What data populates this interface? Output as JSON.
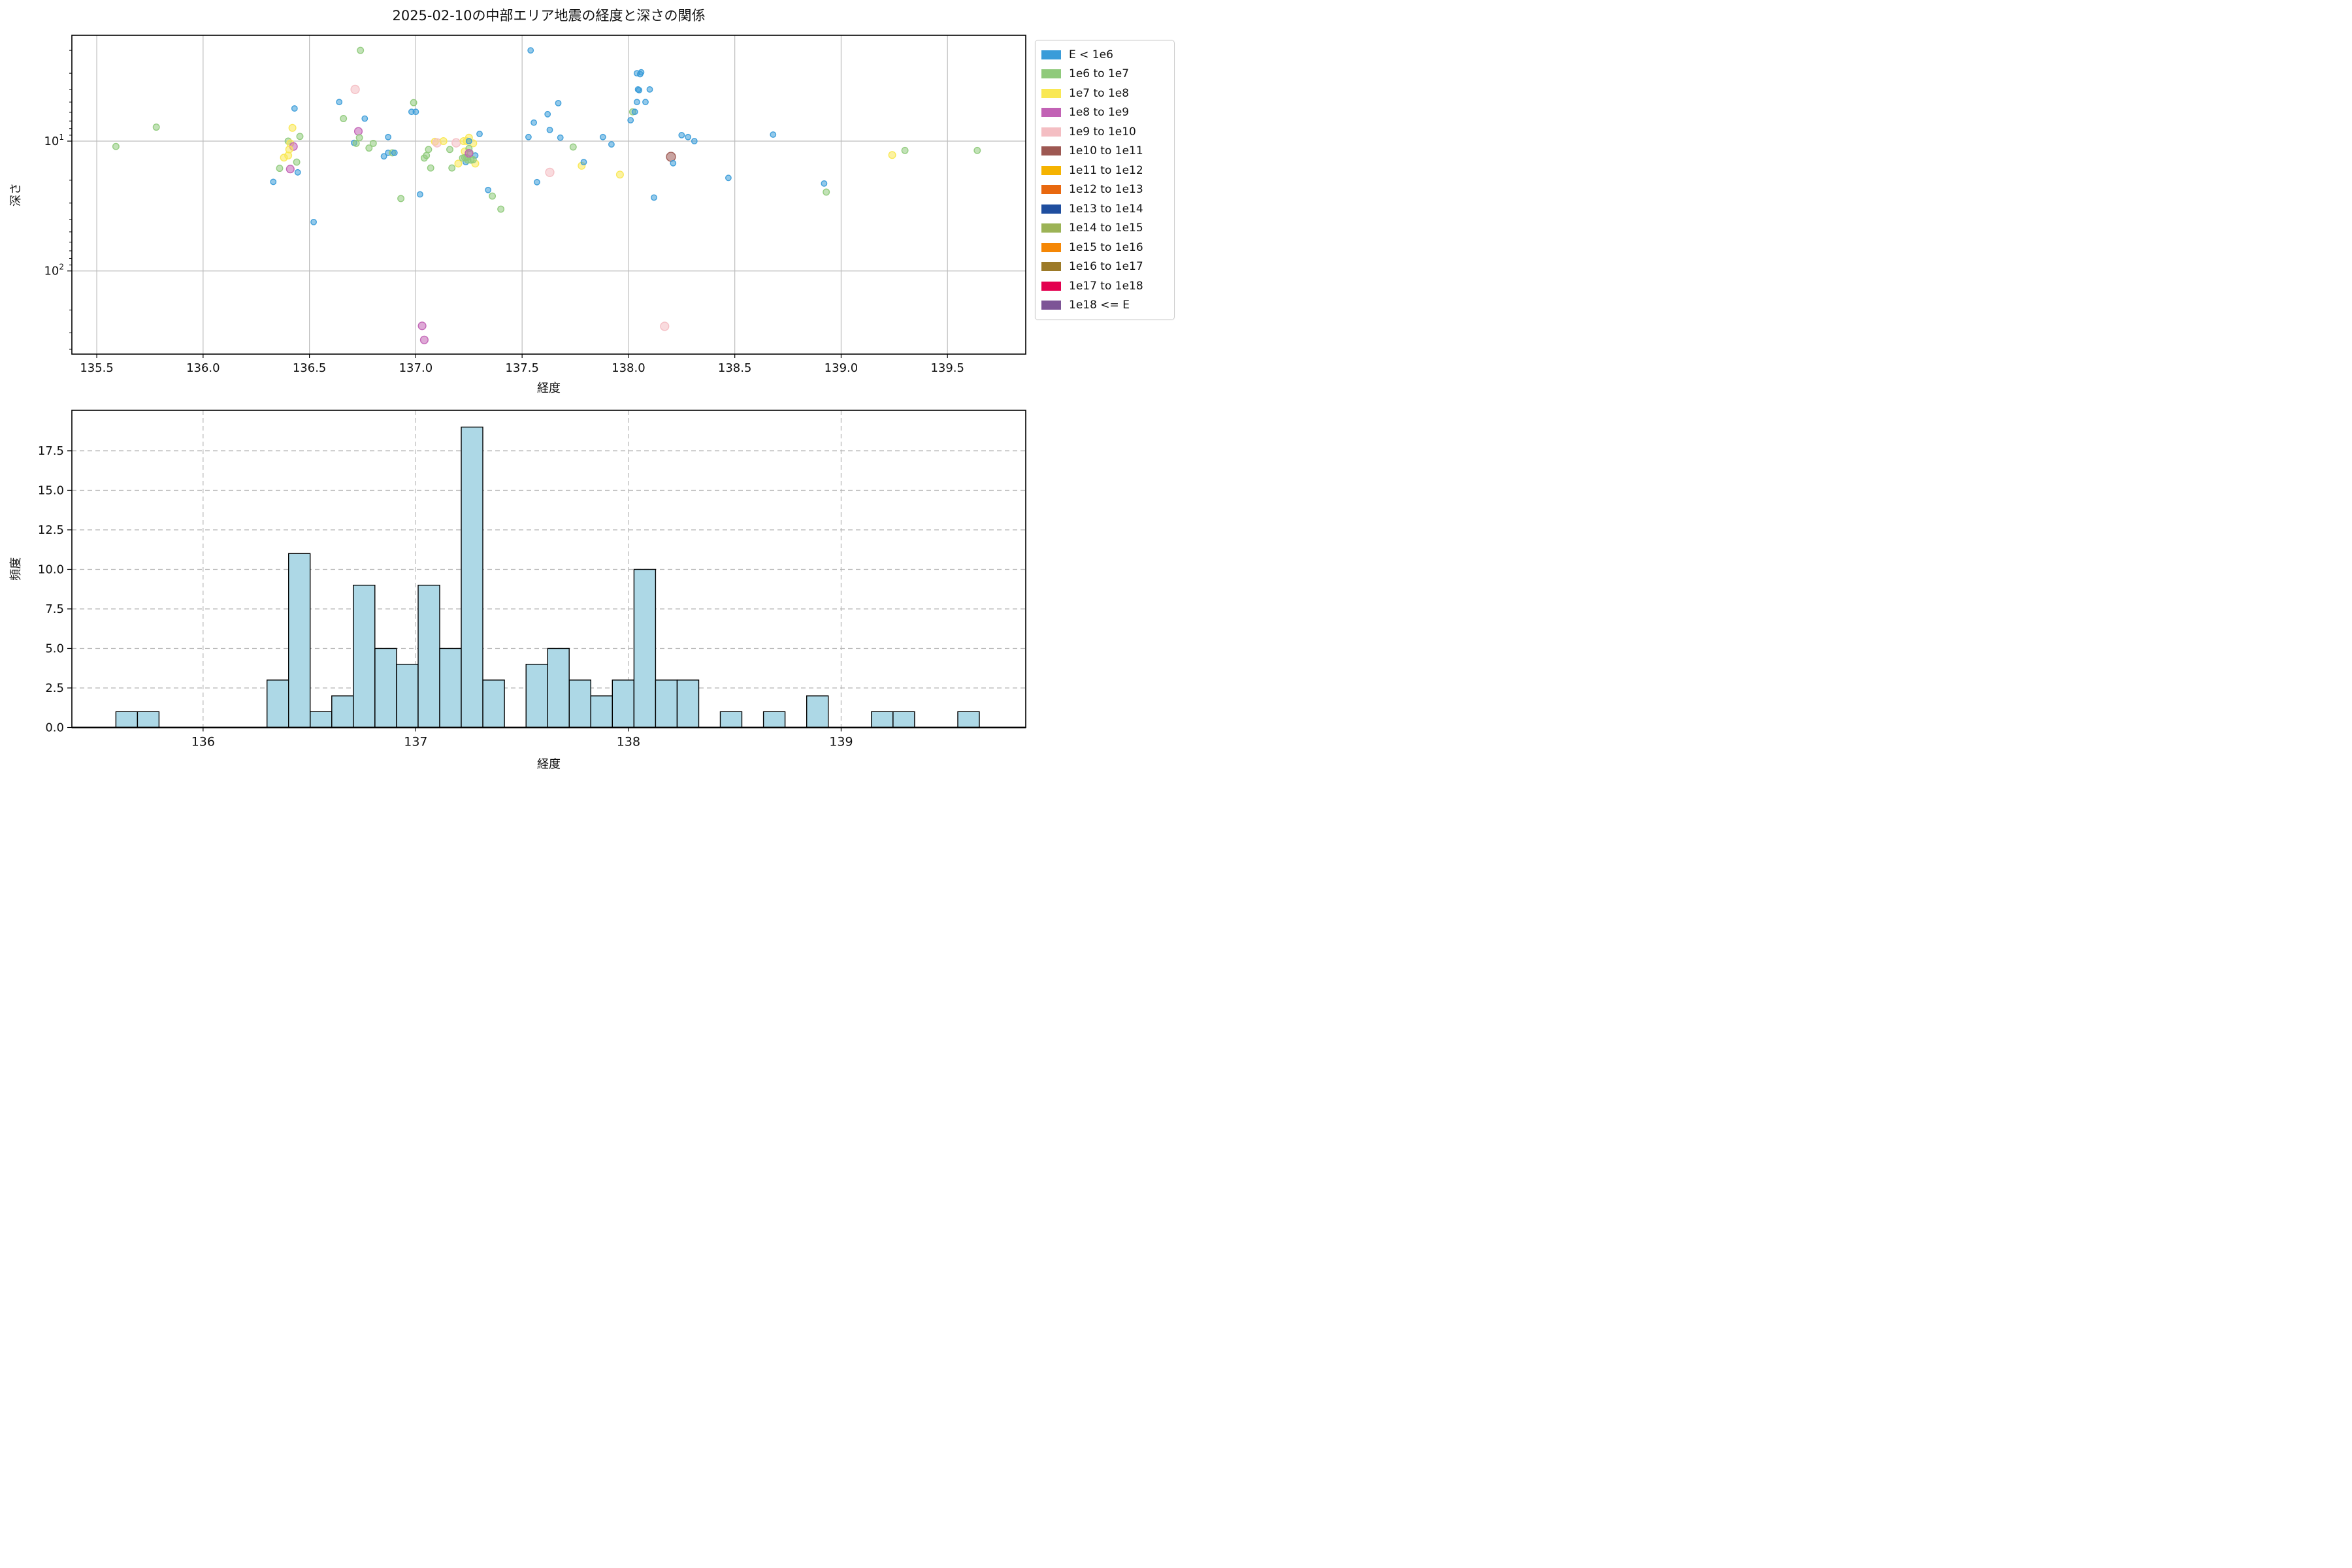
{
  "title": "2025-02-10の中部エリア地震の経度と深さの関係",
  "legend": {
    "entries": [
      {
        "label": "E < 1e6",
        "color": "#3a9cd9"
      },
      {
        "label": "1e6 to 1e7",
        "color": "#8fca7b"
      },
      {
        "label": "1e7 to 1e8",
        "color": "#f9e854"
      },
      {
        "label": "1e8 to 1e9",
        "color": "#c262b5"
      },
      {
        "label": "1e9 to 1e10",
        "color": "#f4bec3"
      },
      {
        "label": "1e10 to 1e11",
        "color": "#9d5852"
      },
      {
        "label": "1e11 to 1e12",
        "color": "#f5b301"
      },
      {
        "label": "1e12 to 1e13",
        "color": "#e8680f"
      },
      {
        "label": "1e13 to 1e14",
        "color": "#1f4e9f"
      },
      {
        "label": "1e14 to 1e15",
        "color": "#9cb356"
      },
      {
        "label": "1e15 to 1e16",
        "color": "#f58705"
      },
      {
        "label": "1e16 to 1e17",
        "color": "#9c7a28"
      },
      {
        "label": "1e17 to 1e18",
        "color": "#e3004f"
      },
      {
        "label": "1e18 <= E",
        "color": "#7d5496"
      }
    ]
  },
  "chart_data": [
    {
      "type": "scatter",
      "title": "2025-02-10の中部エリア地震の経度と深さの関係",
      "xlabel": "経度",
      "ylabel": "深さ",
      "xlim": [
        135.383,
        139.868
      ],
      "xticks": [
        135.5,
        136.0,
        136.5,
        137.0,
        137.5,
        138.0,
        138.5,
        139.0,
        139.5
      ],
      "yscale": "log-inverted-depth",
      "ylim_depth": [
        1.53,
        437.0
      ],
      "ytick_depths": [
        10,
        100
      ],
      "ytick_exponents": [
        1,
        2
      ],
      "grid": "solid gray, x every 0.5 deg, y at decades",
      "legend_position": "upper right, outside axes",
      "categories": [
        "E < 1e6",
        "1e6 to 1e7",
        "1e7 to 1e8",
        "1e8 to 1e9",
        "1e9 to 1e10",
        "1e10 to 1e11"
      ],
      "point_format": "[longitude, depth_km, category_index]",
      "points": [
        [
          135.59,
          11.0,
          1
        ],
        [
          135.78,
          7.8,
          1
        ],
        [
          136.33,
          20.6,
          0
        ],
        [
          136.36,
          16.2,
          1
        ],
        [
          136.38,
          13.4,
          2
        ],
        [
          136.42,
          7.9,
          2
        ],
        [
          136.4,
          10.0,
          1
        ],
        [
          136.41,
          10.4,
          2
        ],
        [
          136.425,
          11.0,
          3
        ],
        [
          136.405,
          11.6,
          2
        ],
        [
          136.4,
          12.9,
          2
        ],
        [
          136.44,
          14.5,
          1
        ],
        [
          136.41,
          16.4,
          3
        ],
        [
          136.445,
          17.4,
          0
        ],
        [
          136.455,
          9.2,
          1
        ],
        [
          136.43,
          5.6,
          0
        ],
        [
          136.52,
          42.0,
          0
        ],
        [
          136.64,
          5.0,
          0
        ],
        [
          136.66,
          6.7,
          1
        ],
        [
          136.715,
          4.0,
          4
        ],
        [
          136.74,
          2.0,
          1
        ],
        [
          136.73,
          8.4,
          3
        ],
        [
          136.735,
          9.4,
          1
        ],
        [
          136.71,
          10.3,
          0
        ],
        [
          136.72,
          10.4,
          1
        ],
        [
          136.8,
          10.4,
          1
        ],
        [
          136.78,
          11.3,
          1
        ],
        [
          136.76,
          6.7,
          0
        ],
        [
          136.87,
          9.3,
          0
        ],
        [
          136.85,
          13.1,
          0
        ],
        [
          136.87,
          12.3,
          0
        ],
        [
          136.89,
          12.3,
          1
        ],
        [
          136.9,
          12.3,
          0
        ],
        [
          136.99,
          5.05,
          1
        ],
        [
          136.98,
          5.95,
          0
        ],
        [
          137.0,
          5.95,
          0
        ],
        [
          136.93,
          27.7,
          1
        ],
        [
          137.03,
          265.0,
          3
        ],
        [
          137.04,
          340.0,
          3
        ],
        [
          137.05,
          12.9,
          1
        ],
        [
          137.06,
          11.6,
          1
        ],
        [
          137.09,
          10.1,
          2
        ],
        [
          137.1,
          10.3,
          4
        ],
        [
          137.07,
          16.1,
          1
        ],
        [
          137.02,
          25.7,
          0
        ],
        [
          137.04,
          13.5,
          1
        ],
        [
          137.13,
          10.0,
          2
        ],
        [
          137.16,
          11.6,
          1
        ],
        [
          137.17,
          16.1,
          1
        ],
        [
          137.19,
          10.3,
          4
        ],
        [
          137.2,
          14.9,
          2
        ],
        [
          137.225,
          10.0,
          2
        ],
        [
          137.23,
          12.0,
          2
        ],
        [
          137.28,
          14.9,
          2
        ],
        [
          137.24,
          10.0,
          2
        ],
        [
          137.25,
          9.4,
          2
        ],
        [
          137.27,
          10.4,
          2
        ],
        [
          137.25,
          10.0,
          0
        ],
        [
          137.235,
          14.5,
          0
        ],
        [
          137.28,
          12.9,
          0
        ],
        [
          137.3,
          8.8,
          0
        ],
        [
          137.25,
          11.4,
          1
        ],
        [
          137.255,
          12.3,
          1
        ],
        [
          137.23,
          13.4,
          1
        ],
        [
          137.24,
          13.4,
          1
        ],
        [
          137.22,
          13.5,
          1
        ],
        [
          137.245,
          14.0,
          1
        ],
        [
          137.26,
          14.0,
          1
        ],
        [
          137.27,
          13.9,
          1
        ],
        [
          137.25,
          12.4,
          3
        ],
        [
          137.36,
          26.5,
          1
        ],
        [
          137.4,
          33.4,
          1
        ],
        [
          137.34,
          23.8,
          0
        ],
        [
          137.53,
          9.3,
          0
        ],
        [
          137.555,
          7.2,
          0
        ],
        [
          137.54,
          2.0,
          0
        ],
        [
          137.57,
          20.7,
          0
        ],
        [
          137.63,
          17.4,
          4
        ],
        [
          137.62,
          6.2,
          0
        ],
        [
          137.63,
          8.2,
          0
        ],
        [
          137.67,
          5.1,
          0
        ],
        [
          137.68,
          9.4,
          0
        ],
        [
          137.78,
          15.5,
          2
        ],
        [
          137.79,
          14.5,
          0
        ],
        [
          137.74,
          11.1,
          1
        ],
        [
          137.88,
          9.3,
          0
        ],
        [
          137.92,
          10.6,
          0
        ],
        [
          137.96,
          18.1,
          2
        ],
        [
          138.01,
          6.9,
          0
        ],
        [
          138.02,
          5.95,
          1
        ],
        [
          138.03,
          5.95,
          0
        ],
        [
          138.04,
          3.0,
          0
        ],
        [
          138.055,
          3.05,
          0
        ],
        [
          138.045,
          4.0,
          0
        ],
        [
          138.05,
          4.05,
          0
        ],
        [
          138.1,
          4.0,
          0
        ],
        [
          138.04,
          5.0,
          0
        ],
        [
          138.08,
          5.0,
          0
        ],
        [
          138.12,
          27.2,
          0
        ],
        [
          138.06,
          2.95,
          0
        ],
        [
          138.17,
          267.0,
          4
        ],
        [
          138.2,
          13.2,
          5
        ],
        [
          138.21,
          14.8,
          0
        ],
        [
          138.25,
          9.0,
          0
        ],
        [
          138.28,
          9.3,
          0
        ],
        [
          138.31,
          10.0,
          0
        ],
        [
          138.47,
          19.2,
          0
        ],
        [
          138.68,
          8.9,
          0
        ],
        [
          138.92,
          21.2,
          0
        ],
        [
          138.93,
          24.7,
          1
        ],
        [
          139.24,
          12.8,
          2
        ],
        [
          139.3,
          11.8,
          1
        ],
        [
          139.64,
          11.8,
          1
        ]
      ]
    },
    {
      "type": "histogram",
      "xlabel": "経度",
      "ylabel": "頻度",
      "xlim": [
        135.383,
        139.868
      ],
      "xticks": [
        136,
        137,
        138,
        139
      ],
      "yticks": [
        0.0,
        2.5,
        5.0,
        7.5,
        10.0,
        12.5,
        15.0,
        17.5
      ],
      "ylim": [
        0,
        20.06
      ],
      "grid": "dashed gray both axes",
      "bar_fill": "#add8e6",
      "bar_edge": "#000000",
      "bin_start": 135.59,
      "bin_width": 0.1015,
      "counts": [
        1,
        1,
        0,
        0,
        0,
        0,
        0,
        3,
        11,
        1,
        2,
        9,
        5,
        4,
        9,
        5,
        19,
        3,
        0,
        4,
        5,
        3,
        2,
        3,
        10,
        3,
        3,
        0,
        1,
        0,
        1,
        0,
        2,
        0,
        0,
        1,
        1,
        0,
        0,
        1
      ]
    }
  ]
}
